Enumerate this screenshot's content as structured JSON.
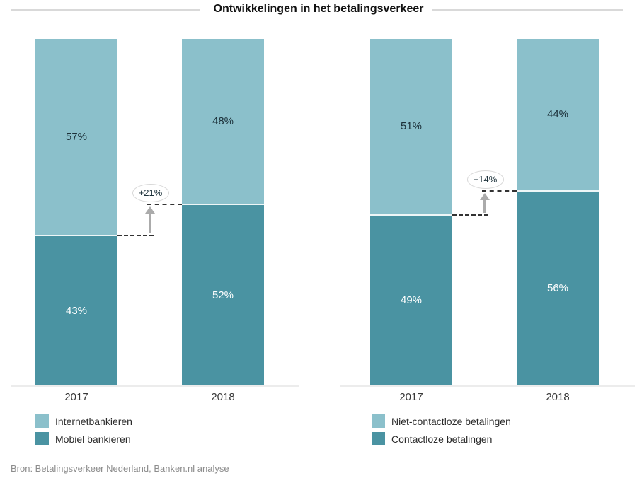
{
  "title": "Ontwikkelingen in het betalingsverkeer",
  "source": "Bron: Betalingsverkeer Nederland, Banken.nl analyse",
  "colors": {
    "series_light": "#8BC0CB",
    "series_dark": "#4A93A2",
    "arrow": "#ABABAB",
    "dashed_line": "#333333",
    "axis_line": "#ECECEC",
    "title_rule": "#D9D9D9",
    "value_label_dark": "#1C313A",
    "value_label_light": "#FFFFFF"
  },
  "chart_data": [
    {
      "type": "bar",
      "stacked": true,
      "unit": "%",
      "categories": [
        "2017",
        "2018"
      ],
      "series": [
        {
          "name": "Internetbankieren",
          "values": [
            57,
            48
          ],
          "color": "#8BC0CB",
          "position": "top"
        },
        {
          "name": "Mobiel bankieren",
          "values": [
            43,
            52
          ],
          "color": "#4A93A2",
          "position": "bottom"
        }
      ],
      "annotation": {
        "label": "+21%"
      },
      "ylim": [
        0,
        100
      ],
      "grid": false,
      "legend_position": "bottom-left"
    },
    {
      "type": "bar",
      "stacked": true,
      "unit": "%",
      "categories": [
        "2017",
        "2018"
      ],
      "series": [
        {
          "name": "Niet-contactloze betalingen",
          "values": [
            51,
            44
          ],
          "color": "#8BC0CB",
          "position": "top"
        },
        {
          "name": "Contactloze betalingen",
          "values": [
            49,
            56
          ],
          "color": "#4A93A2",
          "position": "bottom"
        }
      ],
      "annotation": {
        "label": "+14%"
      },
      "ylim": [
        0,
        100
      ],
      "grid": false,
      "legend_position": "bottom-left"
    }
  ]
}
